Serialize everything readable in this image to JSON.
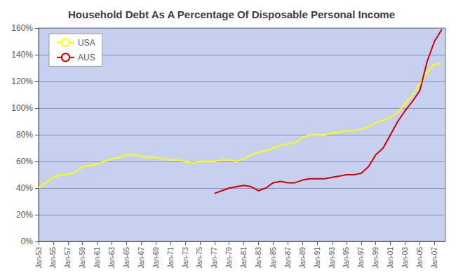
{
  "chart_data": {
    "type": "line",
    "title": "Household Debt As A Percentage Of Disposable Personal Income",
    "series": [
      {
        "name": "USA",
        "color": "#ffff00",
        "x": [
          1953,
          1954,
          1955,
          1956,
          1957,
          1958,
          1959,
          1960,
          1961,
          1962,
          1963,
          1964,
          1965,
          1966,
          1967,
          1968,
          1969,
          1970,
          1971,
          1972,
          1973,
          1974,
          1975,
          1976,
          1977,
          1978,
          1979,
          1980,
          1981,
          1982,
          1983,
          1984,
          1985,
          1986,
          1987,
          1988,
          1989,
          1990,
          1991,
          1992,
          1993,
          1994,
          1995,
          1996,
          1997,
          1998,
          1999,
          2000,
          2001,
          2002,
          2003,
          2004,
          2005,
          2006,
          2007,
          2008
        ],
        "values": [
          0.4,
          0.44,
          0.48,
          0.5,
          0.5,
          0.52,
          0.56,
          0.57,
          0.58,
          0.6,
          0.62,
          0.63,
          0.65,
          0.65,
          0.64,
          0.63,
          0.63,
          0.62,
          0.61,
          0.61,
          0.6,
          0.59,
          0.6,
          0.6,
          0.6,
          0.61,
          0.61,
          0.6,
          0.62,
          0.65,
          0.67,
          0.68,
          0.7,
          0.72,
          0.73,
          0.74,
          0.78,
          0.8,
          0.8,
          0.8,
          0.81,
          0.82,
          0.83,
          0.83,
          0.84,
          0.86,
          0.89,
          0.91,
          0.93,
          0.97,
          1.03,
          1.1,
          1.18,
          1.27,
          1.33,
          1.33
        ]
      },
      {
        "name": "AUS",
        "color": "#cc0000",
        "x": [
          1977,
          1978,
          1979,
          1980,
          1981,
          1982,
          1983,
          1984,
          1985,
          1986,
          1987,
          1988,
          1989,
          1990,
          1991,
          1992,
          1993,
          1994,
          1995,
          1996,
          1997,
          1998,
          1999,
          2000,
          2001,
          2002,
          2003,
          2004,
          2005,
          2006,
          2007,
          2008
        ],
        "values": [
          0.36,
          0.38,
          0.4,
          0.41,
          0.42,
          0.41,
          0.38,
          0.4,
          0.44,
          0.45,
          0.44,
          0.44,
          0.46,
          0.47,
          0.47,
          0.47,
          0.48,
          0.49,
          0.5,
          0.5,
          0.51,
          0.56,
          0.65,
          0.7,
          0.8,
          0.9,
          0.98,
          1.05,
          1.13,
          1.35,
          1.5,
          1.59
        ]
      }
    ],
    "xlim": [
      1953,
      2008.5
    ],
    "xticks": [
      {
        "value": 1953,
        "label": "Jan-53"
      },
      {
        "value": 1955,
        "label": "Jan-55"
      },
      {
        "value": 1957,
        "label": "Jan-57"
      },
      {
        "value": 1959,
        "label": "Jan-59"
      },
      {
        "value": 1961,
        "label": "Jan-61"
      },
      {
        "value": 1963,
        "label": "Jan-63"
      },
      {
        "value": 1965,
        "label": "Jan-65"
      },
      {
        "value": 1967,
        "label": "Jan-67"
      },
      {
        "value": 1969,
        "label": "Jan-69"
      },
      {
        "value": 1971,
        "label": "Jan-71"
      },
      {
        "value": 1973,
        "label": "Jan-73"
      },
      {
        "value": 1975,
        "label": "Jan-75"
      },
      {
        "value": 1977,
        "label": "Jan-77"
      },
      {
        "value": 1979,
        "label": "Jan-79"
      },
      {
        "value": 1981,
        "label": "Jan-81"
      },
      {
        "value": 1983,
        "label": "Jan-83"
      },
      {
        "value": 1985,
        "label": "Jan-85"
      },
      {
        "value": 1987,
        "label": "Jan-87"
      },
      {
        "value": 1989,
        "label": "Jan-89"
      },
      {
        "value": 1991,
        "label": "Jan-91"
      },
      {
        "value": 1993,
        "label": "Jan-93"
      },
      {
        "value": 1995,
        "label": "Jan-95"
      },
      {
        "value": 1997,
        "label": "Jan-97"
      },
      {
        "value": 1999,
        "label": "Jan-99"
      },
      {
        "value": 2001,
        "label": "Jan-01"
      },
      {
        "value": 2003,
        "label": "Jan-03"
      },
      {
        "value": 2005,
        "label": "Jan-05"
      },
      {
        "value": 2007,
        "label": "Jan-07"
      }
    ],
    "ylim": [
      0,
      1.6
    ],
    "yticks": [
      {
        "value": 0,
        "label": "0%"
      },
      {
        "value": 0.2,
        "label": "20%"
      },
      {
        "value": 0.4,
        "label": "40%"
      },
      {
        "value": 0.6,
        "label": "60%"
      },
      {
        "value": 0.8,
        "label": "80%"
      },
      {
        "value": 1.0,
        "label": "100%"
      },
      {
        "value": 1.2,
        "label": "120%"
      },
      {
        "value": 1.4,
        "label": "140%"
      },
      {
        "value": 1.6,
        "label": "160%"
      }
    ],
    "grid": true,
    "legend": "upper left"
  }
}
